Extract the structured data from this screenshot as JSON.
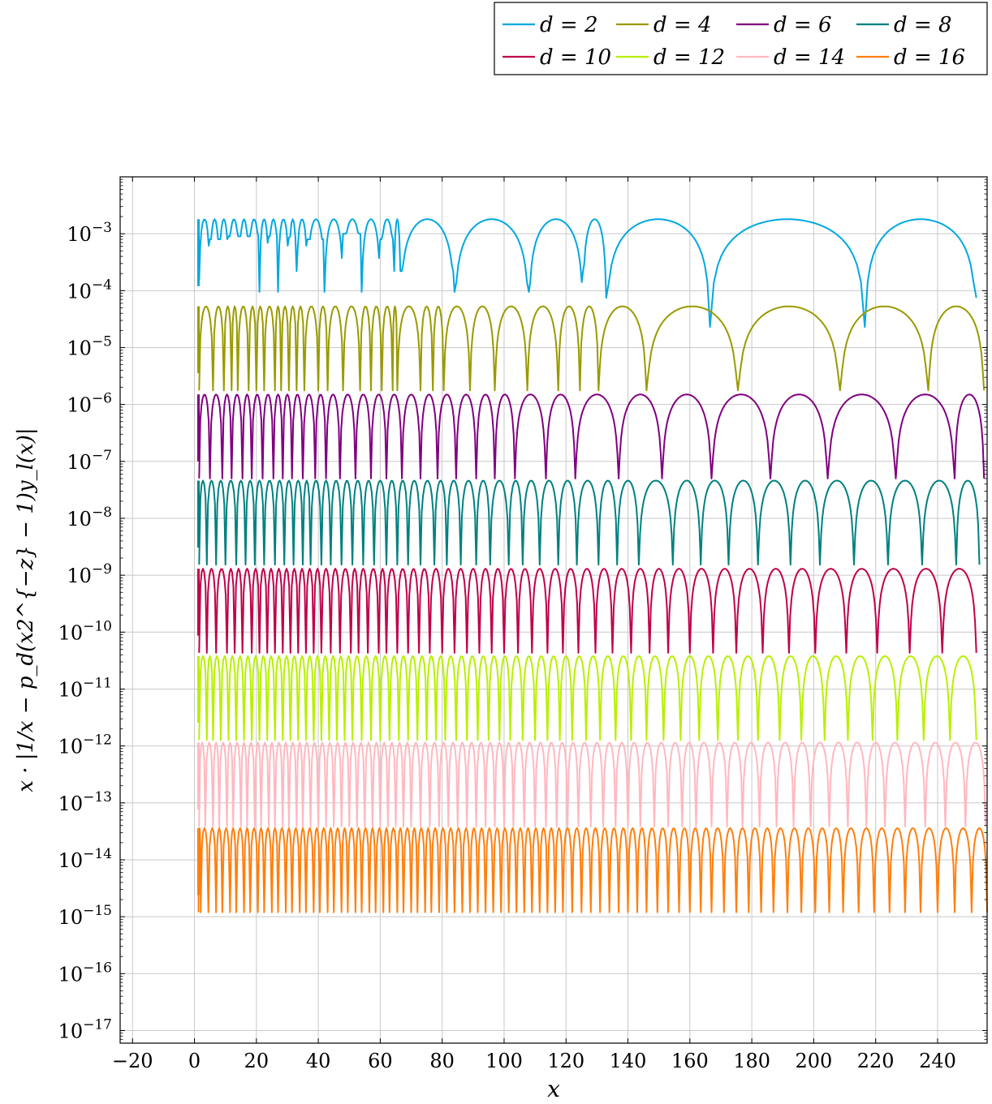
{
  "chart_data": {
    "type": "line",
    "xlabel": "x",
    "ylabel": "x · |1/x − p_d(x2^{−z} − 1)y_l(x)|",
    "yscale": "log",
    "xlim": [
      -24,
      256
    ],
    "ylim": [
      6e-18,
      0.01
    ],
    "grid": true,
    "legend_position": "top-right",
    "x_ticks": [
      -20,
      0,
      20,
      40,
      60,
      80,
      100,
      120,
      140,
      160,
      180,
      200,
      220,
      240
    ],
    "y_ticks": [
      {
        "base": "10",
        "exp": "−17",
        "value": 1e-17
      },
      {
        "base": "10",
        "exp": "−16",
        "value": 1e-16
      },
      {
        "base": "10",
        "exp": "−15",
        "value": 1e-15
      },
      {
        "base": "10",
        "exp": "−14",
        "value": 1e-14
      },
      {
        "base": "10",
        "exp": "−13",
        "value": 1e-13
      },
      {
        "base": "10",
        "exp": "−12",
        "value": 1e-12
      },
      {
        "base": "10",
        "exp": "−11",
        "value": 1e-11
      },
      {
        "base": "10",
        "exp": "−10",
        "value": 1e-10
      },
      {
        "base": "10",
        "exp": "−9",
        "value": 1e-09
      },
      {
        "base": "10",
        "exp": "−8",
        "value": 1e-08
      },
      {
        "base": "10",
        "exp": "−7",
        "value": 1e-07
      },
      {
        "base": "10",
        "exp": "−6",
        "value": 1e-06
      },
      {
        "base": "10",
        "exp": "−5",
        "value": 1e-05
      },
      {
        "base": "10",
        "exp": "−4",
        "value": 0.0001
      },
      {
        "base": "10",
        "exp": "−3",
        "value": 0.001
      }
    ],
    "series": [
      {
        "name": "d = 2",
        "color": "#00a8e0",
        "peak": 0.0018,
        "zeros": [
          1.5,
          5,
          8,
          11,
          14.5,
          17.5,
          21,
          24,
          27,
          30.5,
          33,
          36.5,
          42,
          48,
          54,
          60,
          64.5,
          66.5,
          84,
          108,
          125.5,
          133,
          166.5,
          216.5,
          252.5
        ],
        "dips": [
          0.00015,
          0.0008,
          0.0008,
          0.0009,
          0.0009,
          0.0009,
          9.5e-05,
          0.0009,
          9.5e-05,
          0.00085,
          0.00022,
          0.0008,
          9.5e-05,
          0.001,
          9.5e-05,
          0.0008,
          0.00022,
          0.00022,
          9.5e-05,
          9.5e-05,
          0.00022,
          7.5e-05,
          2.3e-05,
          2.3e-05,
          7.5e-05
        ]
      },
      {
        "name": "d = 4",
        "color": "#9a9a00",
        "peak": 5.3e-05,
        "zeros": [
          1.5,
          6,
          9.5,
          12,
          14,
          17.5,
          20,
          22.5,
          26,
          28,
          30.5,
          33,
          35.5,
          40,
          43,
          48,
          53.5,
          57,
          60.5,
          64,
          65.5,
          73,
          77,
          80.5,
          89,
          97,
          107.5,
          117.5,
          124.5,
          130.5,
          146,
          175.5,
          208.5,
          237,
          255
        ]
      },
      {
        "name": "d = 6",
        "color": "#800080",
        "peak": 1.5e-06,
        "zeros": [
          1.5,
          5,
          9,
          12,
          15.5,
          18.5,
          22,
          25.5,
          28.5,
          31.5,
          35,
          39,
          42.5,
          47,
          52,
          57,
          62,
          67,
          73,
          78.5,
          84.5,
          91,
          97,
          103.5,
          113.5,
          123,
          137,
          151,
          167,
          186,
          204.5,
          226.5,
          245.5,
          255
        ]
      },
      {
        "name": "d = 8",
        "color": "#008080",
        "peak": 4.6e-08,
        "zeros": [
          1.5,
          4,
          7,
          10,
          13.5,
          16.5,
          19.5,
          22.5,
          26,
          29,
          32,
          35,
          37.5,
          41,
          44,
          47.5,
          51,
          54.5,
          58,
          62,
          65.5,
          69,
          73,
          77.5,
          81.5,
          86,
          91,
          95.5,
          101.5,
          106,
          111.5,
          117.5,
          123.5,
          130.5,
          136.5,
          143.5,
          154.5,
          163.5,
          172.5,
          182,
          192.5,
          202,
          213,
          224,
          235,
          246,
          253.5
        ]
      },
      {
        "name": "d = 10",
        "color": "#c0004a",
        "peak": 1.3e-09,
        "zeros": [
          1.5,
          4,
          7,
          10.5,
          13,
          15.5,
          18.5,
          21,
          23.5,
          26,
          28.5,
          31,
          33.5,
          36,
          38.5,
          41,
          44,
          47,
          50.5,
          53,
          56,
          59.5,
          62,
          65.5,
          69,
          72.5,
          76,
          80,
          84,
          88,
          92,
          96,
          100,
          104.5,
          109,
          114,
          119,
          124,
          129.5,
          135,
          141,
          147,
          153,
          160,
          167.5,
          175,
          183.5,
          192,
          200.5,
          210.5,
          220.5,
          231,
          241.5,
          252.5
        ]
      },
      {
        "name": "d = 12",
        "color": "#b8f000",
        "peak": 3.8e-11,
        "zeros": [
          1.5,
          4,
          6,
          8.5,
          11,
          13.5,
          16,
          18.5,
          21,
          23.5,
          26,
          28.5,
          31,
          33.5,
          36,
          38.5,
          41,
          43.5,
          46,
          48.5,
          51,
          54,
          57,
          60,
          63,
          66,
          69,
          72,
          75,
          78,
          81,
          84.5,
          88,
          91.5,
          95,
          98.5,
          102,
          106,
          110,
          114,
          118,
          122,
          126.5,
          131,
          136,
          141,
          146,
          151.5,
          157,
          163,
          169,
          175.5,
          182,
          189,
          196,
          203.5,
          211,
          219,
          227,
          235.5,
          244,
          252.5
        ]
      },
      {
        "name": "d = 14",
        "color": "#ffb8c0",
        "peak": 1.15e-12,
        "zeros": [
          1.5,
          3.5,
          6,
          8,
          10.5,
          12.5,
          15,
          17,
          19.5,
          21.5,
          24,
          26,
          28.5,
          30.5,
          33,
          35,
          37.5,
          40,
          42.5,
          45,
          47.5,
          50,
          52.5,
          55,
          57.5,
          60,
          62.5,
          65,
          67.5,
          70,
          73,
          76,
          79,
          82,
          85,
          88,
          91,
          94,
          97,
          100,
          103,
          106.5,
          110,
          113.5,
          117,
          120.5,
          124,
          128,
          132,
          136,
          140,
          144,
          148.5,
          153,
          157.5,
          162,
          167,
          172,
          177,
          182.5,
          188,
          193.5,
          199,
          205,
          211,
          217,
          223,
          229.5,
          236,
          242.5,
          249,
          255.5
        ]
      },
      {
        "name": "d = 16",
        "color": "#ff7f0e",
        "peak": 3.6e-14,
        "zeros": [
          1.3,
          2,
          4.5,
          7,
          9,
          11.5,
          13.5,
          16,
          18,
          20.5,
          22.5,
          25,
          27,
          29.5,
          31.5,
          34,
          36,
          38.5,
          40.5,
          43,
          45,
          47.5,
          49.5,
          52,
          54,
          56.5,
          58.5,
          61,
          63,
          65.5,
          67.5,
          70,
          72,
          74.5,
          76.5,
          79,
          81.5,
          84,
          86.5,
          89,
          91.5,
          94,
          96.5,
          99,
          101.5,
          104,
          106.5,
          109,
          111.5,
          114,
          116.5,
          119,
          122,
          125,
          128,
          131,
          134,
          137,
          140,
          143,
          146,
          149.5,
          153,
          156.5,
          160,
          163.5,
          167,
          171,
          175,
          179,
          183,
          187,
          191.5,
          196,
          200.5,
          205,
          209.5,
          214.5,
          219.5,
          224.5,
          229.5,
          234.5,
          240,
          245.5,
          251,
          256
        ]
      }
    ],
    "legend": [
      {
        "label": "d = 2",
        "color": "#00a8e0"
      },
      {
        "label": "d = 4",
        "color": "#9a9a00"
      },
      {
        "label": "d = 6",
        "color": "#800080"
      },
      {
        "label": "d = 8",
        "color": "#008080"
      },
      {
        "label": "d = 10",
        "color": "#c0004a"
      },
      {
        "label": "d = 12",
        "color": "#b8f000"
      },
      {
        "label": "d = 14",
        "color": "#ffb8c0"
      },
      {
        "label": "d = 16",
        "color": "#ff7f0e"
      }
    ]
  }
}
